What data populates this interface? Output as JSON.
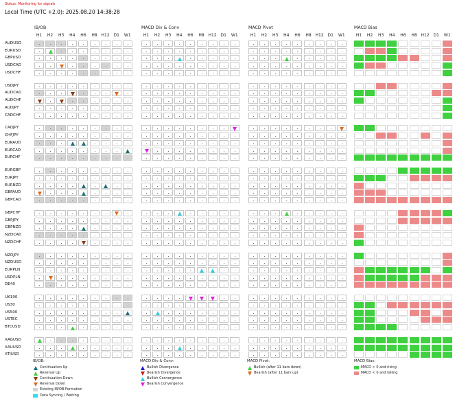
{
  "header": {
    "status": "Status: Monitoring for signals",
    "local_time": "Local Time (UTC +2.0): 2025.08.20 14:38:28"
  },
  "timeframes": [
    "H1",
    "H2",
    "H3",
    "H4",
    "H6",
    "H8",
    "H12",
    "D1",
    "W1"
  ],
  "symbol_groups": [
    [
      "AUDUSD",
      "EURUSD",
      "GBPUSD",
      "USDCAD",
      "USDCHF"
    ],
    [
      "USDJPY",
      "AUDCAD",
      "AUDCHF",
      "AUDJPY",
      "CADCHF"
    ],
    [
      "CADJPY",
      "CHFJPY",
      "EURAUD",
      "EURCAD",
      "EURCHF"
    ],
    [
      "EURGBP",
      "EURJPY",
      "EURNZD",
      "GBPAUD",
      "GBPCAD"
    ],
    [
      "GBPCHF",
      "GBPJPY",
      "GBPNZD",
      "NZDCAD",
      "NZDCHF"
    ],
    [
      "NZDJPY",
      "NZDUSD",
      "EURPLN",
      "USDPLN",
      "DE40"
    ],
    [
      "UK100",
      "US30",
      "US500",
      "USTEC",
      "BTCUSD"
    ],
    [
      "XAGUSD",
      "XAUUSD",
      "XTIUSD"
    ]
  ],
  "colors": {
    "continuation_up": "#1a6e78",
    "reversal_up": "#3fd13f",
    "continuation_down": "#8b3a10",
    "reversal_down": "#e06a1f",
    "bullish_divergence": "#1a1ad8",
    "bearish_divergence": "#c81a1a",
    "bullish_convergence": "#33ccdd",
    "bearish_convergence": "#dd22dd",
    "bias_up": "#3fd13f",
    "bias_down": "#ec8a8a",
    "existing": "#d3d3d3",
    "sync": "#33ddee"
  },
  "panels": [
    {
      "id": "ibob",
      "title": "IB/OB",
      "rows": {
        "AUDUSD": [
          "X",
          "X",
          "X",
          ".",
          ".",
          ".",
          ".",
          ".",
          "."
        ],
        "EURUSD": [
          ".",
          "RU",
          "X",
          ".",
          ".",
          ".",
          ".",
          ".",
          "."
        ],
        "GBPUSD": [
          ".",
          ".",
          ".",
          ".",
          "X",
          ".",
          ".",
          ".",
          "."
        ],
        "USDCAD": [
          ".",
          ".",
          "RD",
          ".",
          "X",
          ".",
          "X",
          ".",
          "."
        ],
        "USDCHF": [
          ".",
          ".",
          ".",
          ".",
          "X",
          "X",
          ".",
          ".",
          "."
        ],
        "USDJPY": [
          ".",
          ".",
          ".",
          ".",
          ".",
          ".",
          ".",
          ".",
          "."
        ],
        "AUDCAD": [
          "X",
          ".",
          ".",
          "CD",
          "X",
          ".",
          ".",
          "RD",
          "."
        ],
        "AUDCHF": [
          "CD",
          ".",
          "CD",
          "X",
          "X",
          ".",
          ".",
          ".",
          "."
        ],
        "AUDJPY": [
          ".",
          ".",
          ".",
          ".",
          ".",
          ".",
          ".",
          ".",
          "."
        ],
        "CADCHF": [
          ".",
          ".",
          ".",
          ".",
          ".",
          ".",
          ".",
          ".",
          "."
        ],
        "CADJPY": [
          ".",
          "X",
          "X",
          ".",
          ".",
          ".",
          "X",
          ".",
          "."
        ],
        "CHFJPY": [
          ".",
          ".",
          ".",
          ".",
          ".",
          ".",
          ".",
          ".",
          "."
        ],
        "EURAUD": [
          "X",
          "X",
          ".",
          "CU",
          "CU",
          ".",
          ".",
          ".",
          "."
        ],
        "EURCAD": [
          ".",
          ".",
          ".",
          ".",
          ".",
          ".",
          ".",
          ".",
          "CU"
        ],
        "EURCHF": [
          "X",
          "X",
          "X",
          "X",
          "X",
          "X",
          "X",
          "X",
          "X"
        ],
        "EURGBP": [
          ".",
          "X",
          ".",
          ".",
          ".",
          ".",
          ".",
          ".",
          "."
        ],
        "EURJPY": [
          ".",
          ".",
          ".",
          ".",
          ".",
          ".",
          ".",
          ".",
          "."
        ],
        "EURNZD": [
          ".",
          ".",
          ".",
          ".",
          "CU",
          ".",
          "CU",
          ".",
          "."
        ],
        "GBPAUD": [
          "RD",
          ".",
          ".",
          ".",
          "CU",
          ".",
          ".",
          ".",
          "."
        ],
        "GBPCAD": [
          "X",
          "X",
          "X",
          "X",
          "X",
          ".",
          ".",
          ".",
          "."
        ],
        "GBPCHF": [
          ".",
          ".",
          ".",
          ".",
          ".",
          ".",
          ".",
          "RD",
          "."
        ],
        "GBPJPY": [
          ".",
          ".",
          ".",
          ".",
          ".",
          ".",
          ".",
          ".",
          "."
        ],
        "GBPNZD": [
          ".",
          ".",
          ".",
          ".",
          "CU",
          ".",
          ".",
          ".",
          "."
        ],
        "NZDCAD": [
          "X",
          "X",
          "X",
          "X",
          "X",
          ".",
          ".",
          ".",
          "."
        ],
        "NZDCHF": [
          ".",
          ".",
          ".",
          ".",
          "CD",
          ".",
          ".",
          ".",
          "."
        ],
        "NZDJPY": [
          "X",
          ".",
          ".",
          ".",
          ".",
          ".",
          ".",
          ".",
          "."
        ],
        "NZDUSD": [
          ".",
          ".",
          ".",
          ".",
          ".",
          ".",
          ".",
          ".",
          "."
        ],
        "EURPLN": [
          ".",
          ".",
          ".",
          ".",
          ".",
          ".",
          ".",
          ".",
          "."
        ],
        "USDPLN": [
          ".",
          "RD",
          ".",
          ".",
          ".",
          ".",
          ".",
          ".",
          "."
        ],
        "DE40": [
          ".",
          "X",
          ".",
          ".",
          ".",
          ".",
          ".",
          ".",
          "."
        ],
        "UK100": [
          ".",
          ".",
          ".",
          ".",
          ".",
          ".",
          ".",
          "X",
          "X"
        ],
        "US30": [
          ".",
          ".",
          ".",
          ".",
          ".",
          ".",
          ".",
          ".",
          "X"
        ],
        "US500": [
          ".",
          ".",
          ".",
          ".",
          ".",
          ".",
          ".",
          ".",
          "CU"
        ],
        "USTEC": [
          ".",
          ".",
          ".",
          ".",
          ".",
          ".",
          ".",
          ".",
          "."
        ],
        "BTCUSD": [
          ".",
          ".",
          ".",
          "RU",
          ".",
          ".",
          ".",
          ".",
          "."
        ],
        "XAGUSD": [
          "RU",
          ".",
          "X",
          "X",
          ".",
          ".",
          ".",
          ".",
          "."
        ],
        "XAUUSD": [
          ".",
          ".",
          ".",
          "RU",
          ".",
          ".",
          ".",
          ".",
          "."
        ],
        "XTIUSD": [
          ".",
          ".",
          ".",
          ".",
          ".",
          ".",
          ".",
          ".",
          "."
        ]
      }
    },
    {
      "id": "macd-div",
      "title": "MACD Div & Conv",
      "rows": {
        "GBPUSD": [
          ".",
          ".",
          ".",
          "UC",
          ".",
          ".",
          ".",
          ".",
          "."
        ],
        "CADJPY": [
          ".",
          ".",
          ".",
          ".",
          ".",
          ".",
          ".",
          ".",
          "DC"
        ],
        "EURCAD": [
          "DC",
          ".",
          ".",
          ".",
          ".",
          ".",
          ".",
          ".",
          "."
        ],
        "GBPCHF": [
          ".",
          ".",
          ".",
          "UC",
          ".",
          ".",
          ".",
          ".",
          "."
        ],
        "EURPLN": [
          ".",
          ".",
          ".",
          ".",
          ".",
          "UC",
          "UC",
          ".",
          "."
        ],
        "UK100": [
          ".",
          ".",
          ".",
          ".",
          "DC",
          "DC",
          "DC",
          ".",
          "."
        ],
        "US500": [
          ".",
          "UC",
          ".",
          ".",
          ".",
          ".",
          ".",
          ".",
          "."
        ],
        "XAUUSD": [
          ".",
          ".",
          ".",
          "UC",
          ".",
          ".",
          ".",
          ".",
          "."
        ]
      }
    },
    {
      "id": "macd-pivot",
      "title": "MACD Pivot",
      "rows": {
        "GBPUSD": [
          ".",
          ".",
          ".",
          "PU",
          ".",
          ".",
          ".",
          ".",
          "."
        ],
        "CADJPY": [
          ".",
          ".",
          ".",
          ".",
          ".",
          ".",
          ".",
          ".",
          "PD"
        ],
        "GBPCHF": [
          ".",
          ".",
          ".",
          "PU",
          ".",
          ".",
          ".",
          ".",
          "."
        ]
      }
    },
    {
      "id": "macd-bias",
      "title": "MACD Bias",
      "rows": {
        "AUDUSD": [
          "U",
          "U",
          "U",
          "U",
          ".",
          ".",
          ".",
          ".",
          "D"
        ],
        "EURUSD": [
          ".",
          "D",
          "D",
          "U",
          ".",
          ".",
          ".",
          ".",
          "D"
        ],
        "GBPUSD": [
          "U",
          "U",
          "U",
          "U",
          "D",
          "D",
          ".",
          ".",
          "D"
        ],
        "USDCAD": [
          "U",
          "D",
          "D",
          ".",
          ".",
          ".",
          ".",
          ".",
          "U"
        ],
        "USDCHF": [
          ".",
          ".",
          ".",
          ".",
          ".",
          ".",
          ".",
          ".",
          "U"
        ],
        "USDJPY": [
          ".",
          ".",
          "D",
          "D",
          ".",
          ".",
          ".",
          ".",
          "D"
        ],
        "AUDCAD": [
          "U",
          "U",
          ".",
          ".",
          ".",
          ".",
          ".",
          "D",
          "D"
        ],
        "AUDCHF": [
          "U",
          ".",
          ".",
          ".",
          ".",
          ".",
          ".",
          ".",
          "U"
        ],
        "AUDJPY": [
          ".",
          ".",
          ".",
          ".",
          ".",
          ".",
          ".",
          ".",
          "U"
        ],
        "CADCHF": [
          ".",
          ".",
          ".",
          ".",
          ".",
          ".",
          ".",
          ".",
          "U"
        ],
        "CADJPY": [
          "U",
          "U",
          ".",
          ".",
          ".",
          ".",
          ".",
          ".",
          "."
        ],
        "CHFJPY": [
          ".",
          ".",
          "D",
          "D",
          ".",
          ".",
          "D",
          ".",
          "D"
        ],
        "EURAUD": [
          ".",
          ".",
          ".",
          ".",
          ".",
          ".",
          ".",
          ".",
          "D"
        ],
        "EURCAD": [
          ".",
          ".",
          ".",
          ".",
          ".",
          ".",
          ".",
          ".",
          "D"
        ],
        "EURCHF": [
          "U",
          "U",
          "U",
          "U",
          "U",
          "U",
          "U",
          "U",
          "U"
        ],
        "EURGBP": [
          ".",
          ".",
          ".",
          ".",
          "U",
          "U",
          "U",
          "U",
          "U"
        ],
        "EURJPY": [
          "U",
          "U",
          "U",
          ".",
          ".",
          "D",
          "D",
          "D",
          "D"
        ],
        "EURNZD": [
          "D",
          ".",
          ".",
          ".",
          ".",
          ".",
          ".",
          ".",
          "."
        ],
        "GBPAUD": [
          "D",
          "D",
          "D",
          ".",
          ".",
          ".",
          ".",
          ".",
          "."
        ],
        "GBPCAD": [
          "D",
          "D",
          "D",
          "D",
          "D",
          "D",
          "D",
          "D",
          "D"
        ],
        "GBPCHF": [
          ".",
          ".",
          ".",
          ".",
          "D",
          "D",
          "D",
          "D",
          "U"
        ],
        "GBPJPY": [
          ".",
          ".",
          ".",
          ".",
          "D",
          "D",
          "D",
          "D",
          "D"
        ],
        "GBPNZD": [
          "D",
          ".",
          ".",
          ".",
          ".",
          ".",
          ".",
          ".",
          "."
        ],
        "NZDCAD": [
          "D",
          ".",
          ".",
          ".",
          ".",
          ".",
          ".",
          ".",
          "."
        ],
        "NZDCHF": [
          "U",
          ".",
          ".",
          ".",
          ".",
          ".",
          ".",
          ".",
          "."
        ],
        "NZDJPY": [
          "U",
          ".",
          ".",
          ".",
          ".",
          ".",
          ".",
          ".",
          "D"
        ],
        "NZDUSD": [
          ".",
          ".",
          ".",
          ".",
          ".",
          ".",
          ".",
          ".",
          "D"
        ],
        "EURPLN": [
          "D",
          "U",
          "U",
          "U",
          "U",
          "U",
          "U",
          ".",
          "U"
        ],
        "USDPLN": [
          "D",
          "U",
          "U",
          "U",
          "U",
          "U",
          "D",
          "D",
          "D"
        ],
        "DE40": [
          "D",
          "D",
          "D",
          "D",
          "D",
          "D",
          "D",
          "D",
          "D"
        ],
        "UK100": [
          ".",
          ".",
          ".",
          ".",
          ".",
          ".",
          ".",
          ".",
          "."
        ],
        "US30": [
          "U",
          "U",
          ".",
          "D",
          "D",
          "D",
          "D",
          "D",
          "D"
        ],
        "US500": [
          "U",
          "U",
          ".",
          ".",
          ".",
          "D",
          "D",
          ".",
          "D"
        ],
        "USTEC": [
          "U",
          "U",
          ".",
          ".",
          ".",
          ".",
          "D",
          "D",
          "D"
        ],
        "BTCUSD": [
          "U",
          "U",
          "U",
          "U",
          ".",
          ".",
          ".",
          ".",
          "."
        ],
        "XAGUSD": [
          "U",
          "U",
          "U",
          "U",
          "U",
          "U",
          "U",
          "U",
          "U"
        ],
        "XAUUSD": [
          "U",
          "U",
          "U",
          "U",
          "U",
          "U",
          "U",
          "U",
          "U"
        ],
        "XTIUSD": [
          ".",
          ".",
          ".",
          ".",
          ".",
          "U",
          "U",
          "U",
          "U"
        ]
      }
    }
  ],
  "legends": {
    "ibob": {
      "title": "IB/OB:",
      "items": [
        {
          "type": "tri-up",
          "color": "#1a6e78",
          "label": "Continuation Up"
        },
        {
          "type": "tri-up",
          "color": "#3fd13f",
          "label": "Reversal Up"
        },
        {
          "type": "tri-down",
          "color": "#8b3a10",
          "label": "Continuation Down"
        },
        {
          "type": "tri-down",
          "color": "#e06a1f",
          "label": "Reversal Down"
        },
        {
          "type": "sw",
          "color": "#d3d3d3",
          "label": "Existing IB/OB Formation"
        },
        {
          "type": "sw",
          "color": "#33ddee",
          "label": "Data Syncing / Waiting"
        }
      ]
    },
    "macd_div": {
      "title": "MACD Div & Conv:",
      "items": [
        {
          "type": "tri-up",
          "color": "#1a1ad8",
          "label": "Bullish Divergence"
        },
        {
          "type": "tri-down",
          "color": "#c81a1a",
          "label": "Bearish Divergence"
        },
        {
          "type": "tri-up",
          "color": "#33ccdd",
          "label": "Bullish Convergence"
        },
        {
          "type": "tri-down",
          "color": "#dd22dd",
          "label": "Bearish Convergence"
        }
      ]
    },
    "macd_pivot": {
      "title": "MACD Pivot:",
      "items": [
        {
          "type": "tri-up",
          "color": "#3fd13f",
          "label": "Bullish (after 11 bars down)"
        },
        {
          "type": "tri-down",
          "color": "#e06a1f",
          "label": "Bearish (after 11 bars up)"
        }
      ]
    },
    "macd_bias": {
      "title": "MACD Bias:",
      "items": [
        {
          "type": "sw",
          "color": "#3fd13f",
          "label": "MACD > 0 and rising"
        },
        {
          "type": "sw",
          "color": "#ec8a8a",
          "label": "MACD < 0 and falling"
        }
      ]
    }
  }
}
